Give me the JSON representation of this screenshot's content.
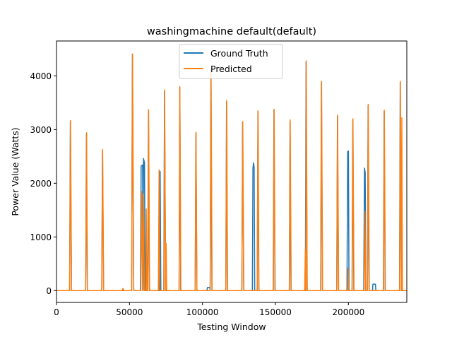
{
  "chart_data": {
    "type": "line",
    "title": "washingmachine default(default)",
    "xlabel": "Testing Window",
    "ylabel": "Power Value (Watts)",
    "xlim": [
      0,
      240000
    ],
    "ylim": [
      -220,
      4650
    ],
    "xticks": [
      0,
      50000,
      100000,
      150000,
      200000
    ],
    "xtick_labels": [
      "0",
      "50000",
      "100000",
      "150000",
      "200000"
    ],
    "yticks": [
      0,
      1000,
      2000,
      3000,
      4000
    ],
    "ytick_labels": [
      "0",
      "1000",
      "2000",
      "3000",
      "4000"
    ],
    "grid": false,
    "legend_position": "top-center",
    "series": [
      {
        "name": "Ground Truth",
        "color": "#1f77b4",
        "points": [
          [
            0,
            0
          ],
          [
            9000,
            0
          ],
          [
            9500,
            3150
          ],
          [
            10300,
            0
          ],
          [
            20000,
            0
          ],
          [
            20500,
            2920
          ],
          [
            21200,
            0
          ],
          [
            31000,
            0
          ],
          [
            31500,
            2600
          ],
          [
            32300,
            0
          ],
          [
            51500,
            0
          ],
          [
            52000,
            4400
          ],
          [
            52900,
            0
          ],
          [
            57500,
            0
          ],
          [
            58000,
            2320
          ],
          [
            59000,
            2340
          ],
          [
            59300,
            0
          ],
          [
            59600,
            2460
          ],
          [
            60300,
            2380
          ],
          [
            60700,
            0
          ],
          [
            62500,
            0
          ],
          [
            63000,
            3350
          ],
          [
            63700,
            0
          ],
          [
            70500,
            0
          ],
          [
            71000,
            2220
          ],
          [
            71500,
            0
          ],
          [
            73500,
            0
          ],
          [
            74000,
            3720
          ],
          [
            74800,
            0
          ],
          [
            84000,
            0
          ],
          [
            84500,
            3780
          ],
          [
            85100,
            0
          ],
          [
            95000,
            0
          ],
          [
            95500,
            2930
          ],
          [
            96200,
            0
          ],
          [
            103000,
            0
          ],
          [
            103500,
            60
          ],
          [
            105000,
            60
          ],
          [
            105300,
            0
          ],
          [
            105800,
            4100
          ],
          [
            106500,
            0
          ],
          [
            116000,
            0
          ],
          [
            116500,
            3520
          ],
          [
            117100,
            0
          ],
          [
            127000,
            0
          ],
          [
            127500,
            3130
          ],
          [
            128300,
            0
          ],
          [
            134200,
            0
          ],
          [
            134600,
            2280
          ],
          [
            135000,
            2380
          ],
          [
            135400,
            2300
          ],
          [
            135800,
            0
          ],
          [
            137500,
            0
          ],
          [
            138000,
            3330
          ],
          [
            138600,
            0
          ],
          [
            148500,
            0
          ],
          [
            149000,
            3360
          ],
          [
            149700,
            0
          ],
          [
            159500,
            0
          ],
          [
            160000,
            3150
          ],
          [
            160700,
            0
          ],
          [
            170500,
            0
          ],
          [
            171000,
            4260
          ],
          [
            171700,
            0
          ],
          [
            181000,
            0
          ],
          [
            181500,
            3880
          ],
          [
            182200,
            0
          ],
          [
            192000,
            0
          ],
          [
            192500,
            3250
          ],
          [
            193200,
            0
          ],
          [
            199000,
            0
          ],
          [
            199500,
            2590
          ],
          [
            200000,
            2600
          ],
          [
            200400,
            0
          ],
          [
            202500,
            0
          ],
          [
            203000,
            3180
          ],
          [
            203700,
            0
          ],
          [
            210500,
            0
          ],
          [
            211000,
            2280
          ],
          [
            211500,
            2200
          ],
          [
            211900,
            0
          ],
          [
            213000,
            0
          ],
          [
            213500,
            3450
          ],
          [
            214200,
            0
          ],
          [
            216500,
            0
          ],
          [
            216800,
            120
          ],
          [
            218500,
            120
          ],
          [
            218800,
            0
          ],
          [
            224000,
            0
          ],
          [
            224500,
            3340
          ],
          [
            225200,
            0
          ],
          [
            235000,
            0
          ],
          [
            235500,
            3880
          ],
          [
            236300,
            0
          ],
          [
            240000,
            0
          ]
        ]
      },
      {
        "name": "Predicted",
        "color": "#ff7f0e",
        "points": [
          [
            0,
            0
          ],
          [
            9000,
            0
          ],
          [
            9600,
            3170
          ],
          [
            10300,
            0
          ],
          [
            20000,
            0
          ],
          [
            20600,
            2940
          ],
          [
            21200,
            0
          ],
          [
            31000,
            0
          ],
          [
            31600,
            2630
          ],
          [
            32300,
            0
          ],
          [
            45000,
            0
          ],
          [
            45500,
            40
          ],
          [
            46200,
            0
          ],
          [
            51500,
            0
          ],
          [
            52100,
            4410
          ],
          [
            52900,
            0
          ],
          [
            57800,
            0
          ],
          [
            58300,
            1850
          ],
          [
            59000,
            0
          ],
          [
            59500,
            1800
          ],
          [
            60200,
            0
          ],
          [
            61200,
            0
          ],
          [
            61500,
            1520
          ],
          [
            62000,
            0
          ],
          [
            62600,
            0
          ],
          [
            63100,
            3370
          ],
          [
            63800,
            0
          ],
          [
            69800,
            0
          ],
          [
            70300,
            2250
          ],
          [
            70800,
            0
          ],
          [
            73600,
            0
          ],
          [
            74100,
            3740
          ],
          [
            74700,
            0
          ],
          [
            75100,
            880
          ],
          [
            75500,
            0
          ],
          [
            84000,
            0
          ],
          [
            84500,
            3800
          ],
          [
            85200,
            0
          ],
          [
            95000,
            0
          ],
          [
            95600,
            2950
          ],
          [
            96200,
            0
          ],
          [
            105300,
            0
          ],
          [
            105900,
            4110
          ],
          [
            106600,
            0
          ],
          [
            116000,
            0
          ],
          [
            116600,
            3540
          ],
          [
            117200,
            0
          ],
          [
            127000,
            0
          ],
          [
            127600,
            3150
          ],
          [
            128300,
            0
          ],
          [
            137500,
            0
          ],
          [
            138100,
            3350
          ],
          [
            138700,
            0
          ],
          [
            148600,
            0
          ],
          [
            149100,
            3380
          ],
          [
            149800,
            0
          ],
          [
            159600,
            0
          ],
          [
            160100,
            3180
          ],
          [
            160800,
            0
          ],
          [
            170000,
            0
          ],
          [
            170500,
            760
          ],
          [
            170800,
            0
          ],
          [
            171100,
            4280
          ],
          [
            171800,
            0
          ],
          [
            181000,
            0
          ],
          [
            181600,
            3900
          ],
          [
            182300,
            0
          ],
          [
            192000,
            0
          ],
          [
            192600,
            3270
          ],
          [
            193300,
            0
          ],
          [
            199400,
            0
          ],
          [
            199800,
            420
          ],
          [
            200200,
            0
          ],
          [
            202600,
            0
          ],
          [
            203100,
            3200
          ],
          [
            203800,
            0
          ],
          [
            210800,
            0
          ],
          [
            211300,
            1480
          ],
          [
            211900,
            0
          ],
          [
            213100,
            0
          ],
          [
            213600,
            3470
          ],
          [
            214300,
            0
          ],
          [
            224100,
            0
          ],
          [
            224600,
            3360
          ],
          [
            225300,
            0
          ],
          [
            235100,
            0
          ],
          [
            235600,
            3900
          ],
          [
            236300,
            0
          ],
          [
            236600,
            3220
          ],
          [
            237000,
            0
          ],
          [
            240000,
            0
          ]
        ]
      }
    ]
  }
}
